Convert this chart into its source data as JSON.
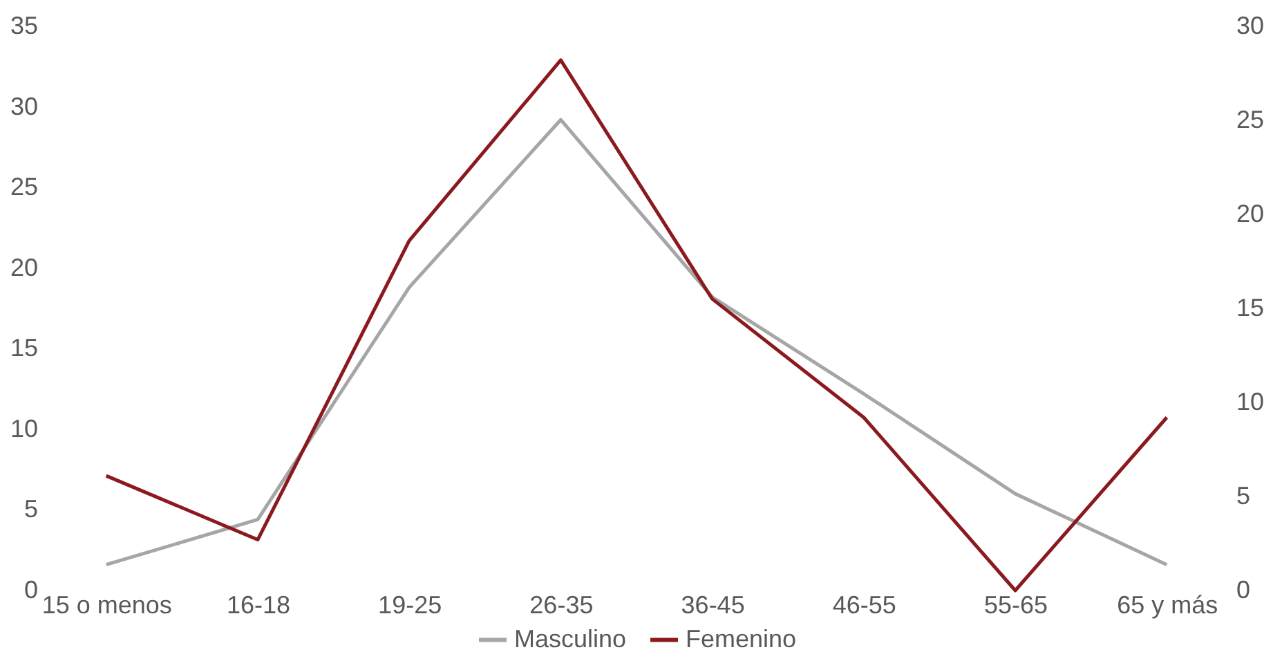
{
  "chart_data": {
    "type": "line",
    "categories": [
      "15 o menos",
      "16-18",
      "19-25",
      "26-35",
      "36-45",
      "46-55",
      "55-65",
      "65 y más"
    ],
    "series": [
      {
        "name": "Masculino",
        "color": "#a6a6a6",
        "values": [
          1.6,
          4.4,
          18.8,
          29.2,
          18.2,
          12.2,
          6.0,
          1.6
        ]
      },
      {
        "name": "Femenino",
        "color": "#8b1a1f",
        "axis": "y2",
        "values": [
          6.1,
          2.7,
          18.6,
          28.2,
          15.5,
          9.2,
          0,
          9.2
        ]
      }
    ],
    "ylim": [
      0,
      35
    ],
    "yticks": [
      0,
      5,
      10,
      15,
      20,
      25,
      30,
      35
    ],
    "y2lim": [
      0,
      30
    ],
    "y2ticks": [
      0,
      5,
      10,
      15,
      20,
      25,
      30
    ],
    "grid": false,
    "legend": "bottom",
    "marker": "none",
    "line_style": "solid"
  }
}
